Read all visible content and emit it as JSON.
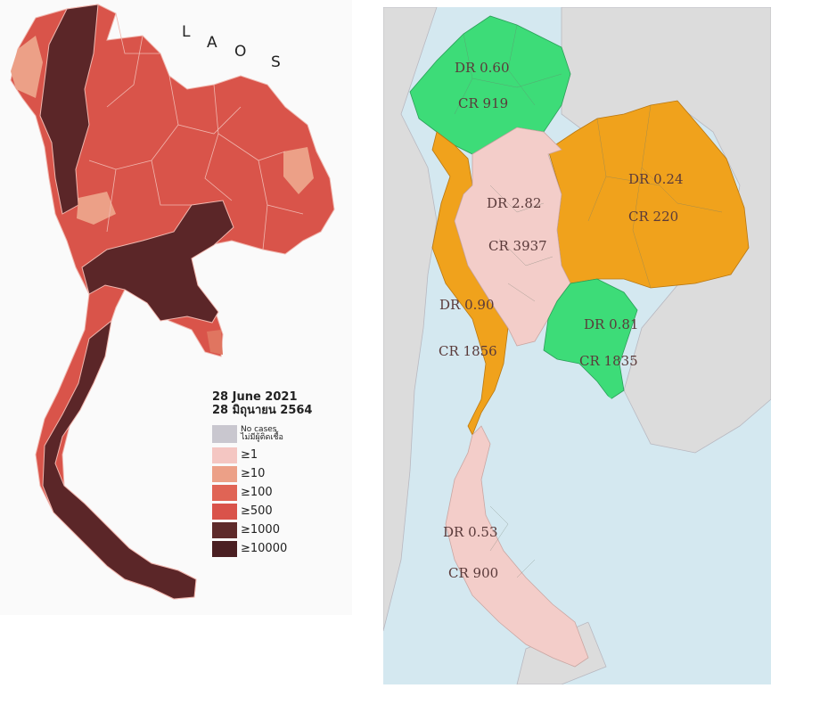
{
  "left_map": {
    "country_label_letters": [
      "L",
      "A",
      "O",
      "S"
    ],
    "legend": {
      "date_en": "28 June 2021",
      "date_th": "28 มิถุนายน 2564",
      "no_cases_en": "No cases",
      "no_cases_th": "ไม่มีผู้ติดเชื้อ",
      "items": [
        {
          "label": "≥1",
          "color": "#f4c6c2"
        },
        {
          "label": "≥10",
          "color": "#eca087"
        },
        {
          "label": "≥100",
          "color": "#e06455"
        },
        {
          "label": "≥500",
          "color": "#d9534a"
        },
        {
          "label": "≥1000",
          "color": "#5e2a2a"
        },
        {
          "label": "≥10000",
          "color": "#4a1f22"
        }
      ],
      "no_cases_color": "#c9c7cf"
    }
  },
  "right_map": {
    "colors": {
      "green": "#3ddc78",
      "orange": "#f0a21c",
      "pink": "#f3cdc9",
      "land": "#dcdcdc",
      "sea": "#d4e8f0"
    },
    "regions": [
      {
        "dr": "DR 0.60",
        "cr": "CR 919"
      },
      {
        "dr": "DR 0.24",
        "cr": "CR 220"
      },
      {
        "dr": "DR 2.82",
        "cr": "CR 3937"
      },
      {
        "dr": "DR 0.90",
        "cr": "CR 1856"
      },
      {
        "dr": "DR 0.81",
        "cr": "CR 1835"
      },
      {
        "dr": "DR 0.53",
        "cr": "CR 900"
      }
    ]
  }
}
